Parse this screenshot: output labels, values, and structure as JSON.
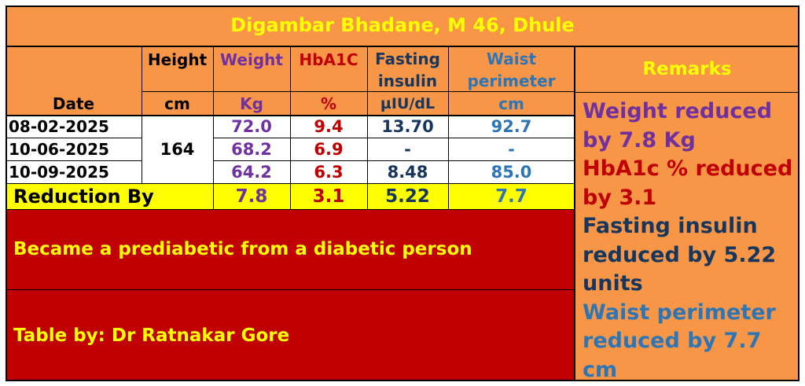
{
  "title": "Digambar Bhadane, M 46, Dhule",
  "headers": {
    "date": "Date",
    "height": "Height",
    "height_unit": "cm",
    "weight": "Weight",
    "weight_unit": "Kg",
    "hba1c": "HbA1C",
    "hba1c_unit": "%",
    "insulin_l1": "Fasting",
    "insulin_l2": "insulin",
    "insulin_unit": "µIU/dL",
    "waist_l1": "Waist",
    "waist_l2": "perimeter",
    "waist_unit": "cm",
    "remarks": "Remarks"
  },
  "height_value": "164",
  "rows": [
    {
      "date": "08-02-2025",
      "weight": "72.0",
      "hba1c": "9.4",
      "insulin": "13.70",
      "waist": "92.7"
    },
    {
      "date": "10-06-2025",
      "weight": "68.2",
      "hba1c": "6.9",
      "insulin": "-",
      "waist": "-"
    },
    {
      "date": "10-09-2025",
      "weight": "64.2",
      "hba1c": "6.3",
      "insulin": "8.48",
      "waist": "85.0"
    }
  ],
  "reduction": {
    "label": "Reduction By",
    "weight": "7.8",
    "hba1c": "3.1",
    "insulin": "5.22",
    "waist": "7.7"
  },
  "note": "Became a prediabetic from a diabetic person",
  "credit": "Table by: Dr Ratnakar Gore",
  "remarks": {
    "weight": "Weight reduced by 7.8 Kg",
    "hba1c": "HbA1c % reduced by 3.1",
    "insulin": "Fasting insulin reduced by 5.22 units",
    "waist": "Waist perimeter reduced by 7.7 cm"
  },
  "colors": {
    "orange": "#f79646",
    "yellow": "#ffff00",
    "red": "#c00000",
    "purple": "#7030a0",
    "navy": "#17365d",
    "blue": "#2e75b6"
  }
}
